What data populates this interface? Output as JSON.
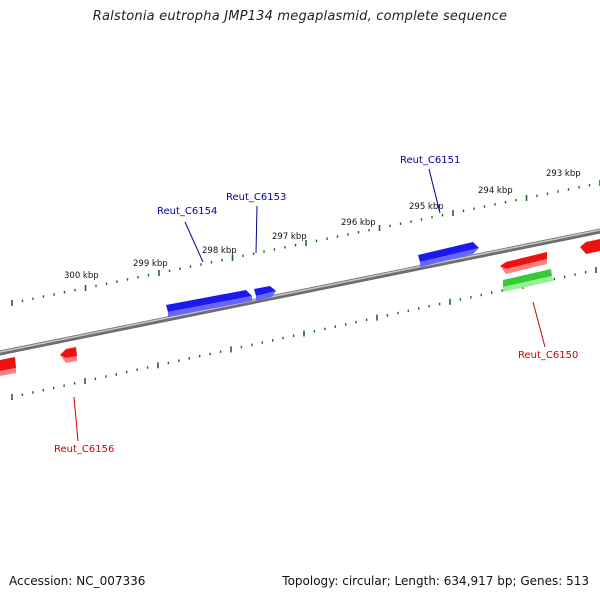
{
  "title": "Ralstonia eutropha JMP134 megaplasmid, complete sequence",
  "footer": {
    "accession": "Accession: NC_007336",
    "summary": "Topology: circular; Length: 634,917 bp; Genes: 513"
  },
  "colors": {
    "forward_gene": "#1a1aee",
    "reverse_gene": "#ee1111",
    "rna_gene": "#33cc33",
    "forward_label": "#000099",
    "reverse_label": "#cc0000",
    "tick": "#226622",
    "backbone": "#888888"
  },
  "kbp_labels": [
    "300 kbp",
    "299 kbp",
    "298 kbp",
    "297 kbp",
    "296 kbp",
    "295 kbp",
    "294 kbp",
    "293 kbp"
  ],
  "forward_genes": [
    "Reut_C6154",
    "Reut_C6153",
    "Reut_C6151"
  ],
  "reverse_genes": [
    "Reut_C6156",
    "Reut_C6150"
  ]
}
